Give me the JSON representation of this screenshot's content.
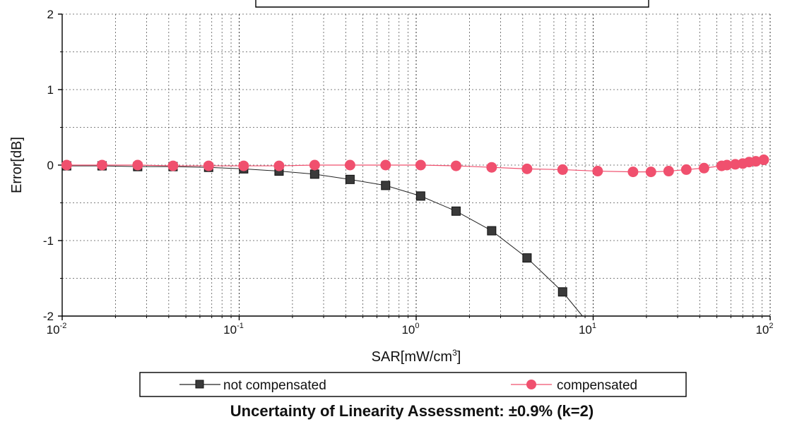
{
  "chart_data": {
    "type": "line",
    "title": "",
    "xlabel": "SAR[mW/cm3]",
    "xlabel_main": "SAR[mW/cm",
    "xlabel_sup": "3",
    "xlabel_close": "]",
    "ylabel": "Error[dB]",
    "xscale": "log",
    "xlim": [
      0.01,
      100
    ],
    "ylim": [
      -2,
      2
    ],
    "grid": true,
    "y_ticks": [
      {
        "value": 2,
        "label": "2"
      },
      {
        "value": 1,
        "label": "1"
      },
      {
        "value": 0,
        "label": "0"
      },
      {
        "value": -1,
        "label": "-1"
      },
      {
        "value": -2,
        "label": "-2"
      }
    ],
    "x_ticks": [
      {
        "value": 0.01,
        "base": "10",
        "exp": "-2"
      },
      {
        "value": 0.1,
        "base": "10",
        "exp": "-1"
      },
      {
        "value": 1,
        "base": "10",
        "exp": "0"
      },
      {
        "value": 10,
        "base": "10",
        "exp": "1"
      },
      {
        "value": 100,
        "base": "10",
        "exp": "2"
      }
    ],
    "legend_position": "bottom",
    "series": [
      {
        "name": "not compensated",
        "color": "#222222",
        "marker": "square",
        "x": [
          0.0106,
          0.0168,
          0.0267,
          0.0423,
          0.0672,
          0.106,
          0.168,
          0.267,
          0.423,
          0.672,
          1.06,
          1.68,
          2.67,
          4.23,
          6.72,
          8.7
        ],
        "y": [
          -0.01,
          -0.01,
          -0.02,
          -0.02,
          -0.03,
          -0.05,
          -0.08,
          -0.12,
          -0.19,
          -0.27,
          -0.41,
          -0.61,
          -0.87,
          -1.23,
          -1.68,
          -2.0
        ],
        "markers_until": 14
      },
      {
        "name": "compensated",
        "color": "#f0506e",
        "marker": "circle",
        "x": [
          0.0106,
          0.0168,
          0.0267,
          0.0423,
          0.0672,
          0.106,
          0.168,
          0.267,
          0.423,
          0.672,
          1.06,
          1.68,
          2.67,
          4.23,
          6.72,
          10.6,
          16.8,
          21.2,
          26.7,
          33.6,
          42.3,
          53.2,
          57.0,
          63.5,
          70.0,
          76.0,
          83.0,
          92.0
        ],
        "y": [
          0.0,
          0.0,
          0.0,
          -0.01,
          -0.01,
          -0.01,
          -0.01,
          0.0,
          0.0,
          0.0,
          0.0,
          -0.01,
          -0.03,
          -0.05,
          -0.06,
          -0.08,
          -0.09,
          -0.09,
          -0.08,
          -0.06,
          -0.04,
          -0.01,
          0.0,
          0.01,
          0.02,
          0.04,
          0.05,
          0.07
        ],
        "markers_until": 27
      }
    ],
    "footer": "Uncertainty of Linearity Assessment: ±0.9% (k=2)"
  }
}
